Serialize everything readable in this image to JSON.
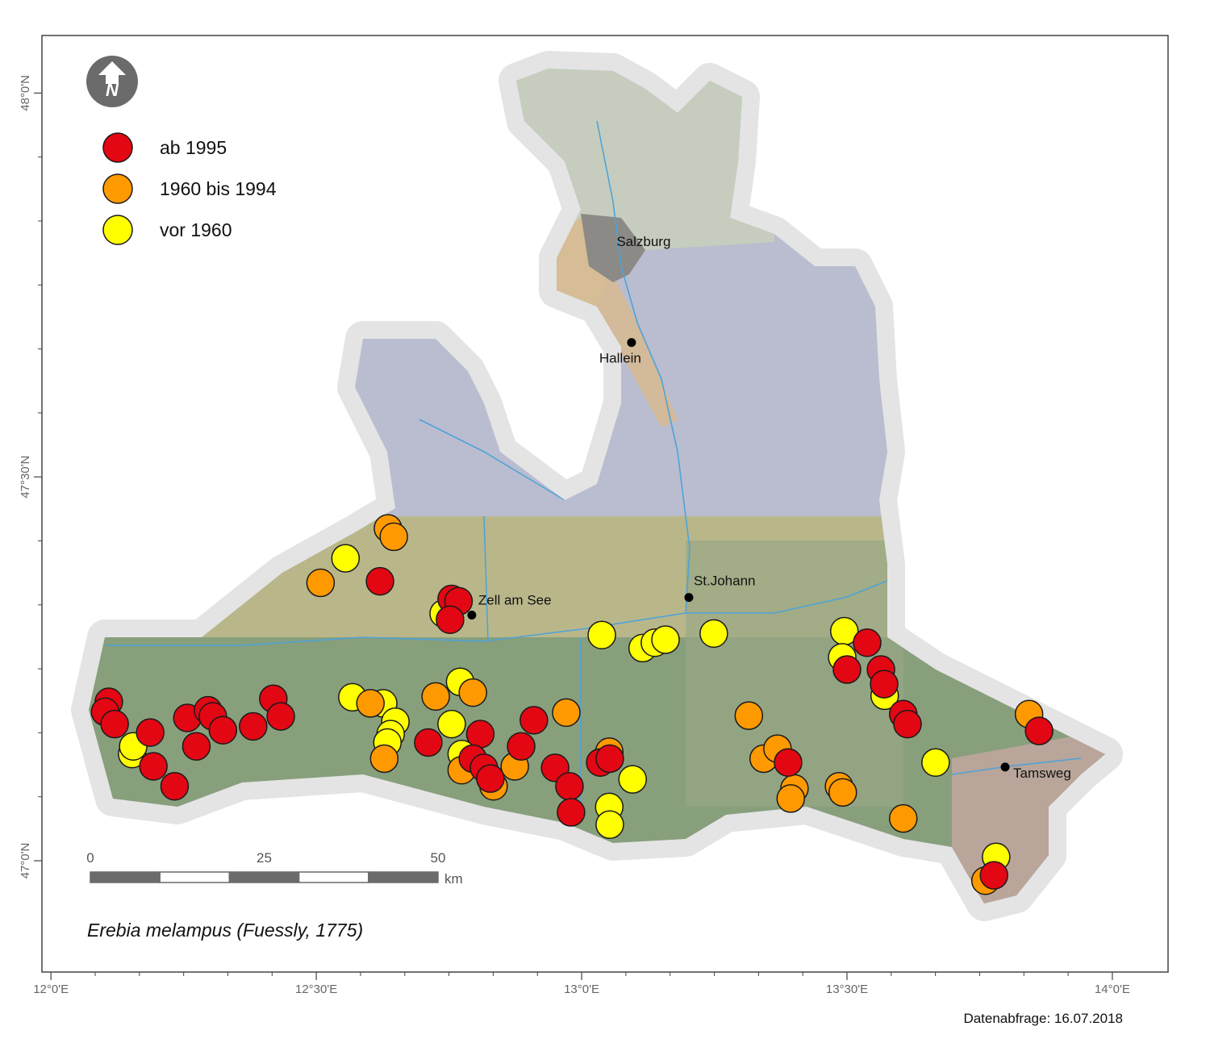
{
  "map": {
    "type": "scatter",
    "title": "Erebia melampus (Fuessly, 1775)",
    "footnote": "Datenabfrage: 16.07.2018",
    "north_label": "N",
    "xlim": [
      11.983,
      14.105
    ],
    "ylim": [
      46.855,
      48.075
    ],
    "xticks": [
      {
        "value": 12,
        "label": "12°0'E"
      },
      {
        "value": 12.5,
        "label": "12°30'E"
      },
      {
        "value": 13,
        "label": "13°0'E"
      },
      {
        "value": 13.5,
        "label": "13°30'E"
      },
      {
        "value": 14,
        "label": "14°0'E"
      }
    ],
    "yticks": [
      {
        "value": 48,
        "label": "48°0'N"
      },
      {
        "value": 47.5,
        "label": "47°30'N"
      },
      {
        "value": 47,
        "label": "47°0'N"
      }
    ],
    "series": [
      {
        "name": "ab 1995",
        "color": "#e30613",
        "x": [
          12.109,
          12.102,
          12.12,
          12.187,
          12.193,
          12.233,
          12.257,
          12.274,
          12.296,
          12.305,
          12.324,
          12.381,
          12.419,
          12.433,
          12.62,
          12.755,
          12.768,
          12.752,
          12.711,
          12.809,
          12.795,
          12.816,
          12.828,
          12.886,
          12.91,
          12.95,
          12.977,
          12.98,
          13.035,
          13.053,
          13.538,
          13.5,
          13.564,
          13.57,
          13.606,
          13.614,
          13.389,
          13.862,
          13.777
        ],
        "y": [
          47.207,
          47.194,
          47.178,
          47.167,
          47.123,
          47.097,
          47.186,
          47.149,
          47.196,
          47.188,
          47.17,
          47.175,
          47.211,
          47.188,
          47.364,
          47.341,
          47.338,
          47.314,
          47.154,
          47.165,
          47.133,
          47.121,
          47.107,
          47.149,
          47.183,
          47.121,
          47.097,
          47.063,
          47.128,
          47.133,
          47.284,
          47.249,
          47.249,
          47.23,
          47.191,
          47.178,
          47.128,
          47.169,
          46.981
        ]
      },
      {
        "name": "1960 bis 1994",
        "color": "#ff9900",
        "x": [
          12.635,
          12.646,
          12.508,
          12.602,
          12.725,
          12.795,
          12.628,
          12.874,
          12.834,
          12.774,
          12.971,
          13.052,
          13.315,
          13.343,
          13.369,
          13.401,
          13.394,
          13.485,
          13.492,
          13.606,
          13.843,
          13.761
        ],
        "y": [
          47.433,
          47.422,
          47.362,
          47.205,
          47.214,
          47.219,
          47.133,
          47.123,
          47.097,
          47.118,
          47.193,
          47.142,
          47.189,
          47.133,
          47.146,
          47.094,
          47.081,
          47.097,
          47.089,
          47.055,
          47.191,
          46.974
        ]
      },
      {
        "name": "vor 1960",
        "color": "#ffff00",
        "x": [
          12.555,
          12.74,
          13.038,
          13.115,
          13.138,
          13.158,
          13.249,
          12.153,
          12.155,
          12.568,
          12.626,
          12.649,
          12.64,
          12.771,
          12.755,
          12.774,
          13.096,
          13.052,
          13.053,
          13.495,
          13.491,
          13.571,
          13.667,
          13.781,
          12.634
        ],
        "y": [
          47.394,
          47.322,
          47.294,
          47.277,
          47.284,
          47.288,
          47.296,
          47.139,
          47.149,
          47.213,
          47.205,
          47.181,
          47.165,
          47.233,
          47.178,
          47.139,
          47.106,
          47.07,
          47.047,
          47.299,
          47.265,
          47.215,
          47.128,
          47.005,
          47.154
        ]
      }
    ],
    "places": [
      {
        "name": "Salzburg",
        "x": 13.059,
        "y": 47.806,
        "marker": false
      },
      {
        "name": "Hallein",
        "x": 13.094,
        "y": 47.675,
        "marker": true
      },
      {
        "name": "Zell am See",
        "x": 12.793,
        "y": 47.32,
        "marker": true
      },
      {
        "name": "St.Johann",
        "x": 13.202,
        "y": 47.343,
        "marker": true
      },
      {
        "name": "Tamsweg",
        "x": 13.798,
        "y": 47.122,
        "marker": true
      }
    ],
    "scale_bar": {
      "ticks": [
        0,
        25,
        50
      ],
      "unit": "km"
    }
  }
}
